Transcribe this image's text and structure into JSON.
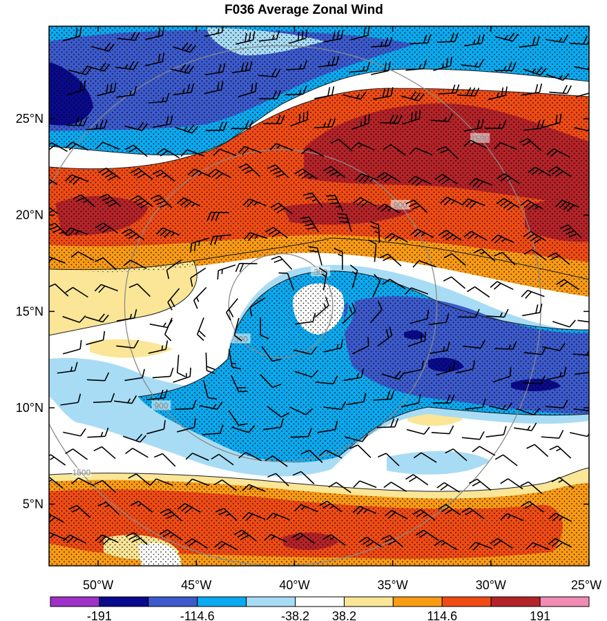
{
  "chart_data": {
    "type": "heatmap",
    "title": "F036 Average Zonal Wind",
    "x_ticks": [
      "50°W",
      "45°W",
      "40°W",
      "35°W",
      "30°W",
      "25°W"
    ],
    "x_tick_values": [
      -50,
      -45,
      -40,
      -35,
      -30,
      -25
    ],
    "y_ticks": [
      "25°N",
      "20°N",
      "15°N",
      "10°N",
      "5°N"
    ],
    "y_tick_values": [
      25,
      20,
      15,
      10,
      5
    ],
    "xlim": [
      -52.5,
      -25
    ],
    "ylim": [
      1.8,
      29.8
    ],
    "colorbar": {
      "colors": [
        "#a031c8",
        "#0a0a8c",
        "#3c5acc",
        "#0aaaf0",
        "#a8dcf5",
        "#ffffff",
        "#fae696",
        "#fa9b14",
        "#f04b14",
        "#b42328",
        "#f08cb4"
      ],
      "labels": [
        "-191",
        "-114.6",
        "-38.2",
        "38.2",
        "114.6",
        "191"
      ],
      "label_values": [
        -191,
        -114.6,
        -38.2,
        38.2,
        114.6,
        191
      ]
    },
    "range_rings": {
      "center": [
        -40.7,
        15.3
      ],
      "radii": [
        300,
        900,
        1500
      ],
      "labels": [
        "300",
        "900",
        "1500"
      ]
    },
    "bands": [
      {
        "lat_min": 24.3,
        "lat_max": 29.8,
        "value": -60
      },
      {
        "lat_min": 22.8,
        "lat_max": 24.3,
        "value": 10
      },
      {
        "lat_min": 17.5,
        "lat_max": 22.8,
        "value": 130
      },
      {
        "lat_min": 15.5,
        "lat_max": 17.5,
        "value": 40
      },
      {
        "lat_min": 8.5,
        "lat_max": 15.5,
        "value": -50
      },
      {
        "lat_min": 5.5,
        "lat_max": 8.5,
        "value": 10
      },
      {
        "lat_min": 1.8,
        "lat_max": 5.5,
        "value": 110
      }
    ]
  }
}
